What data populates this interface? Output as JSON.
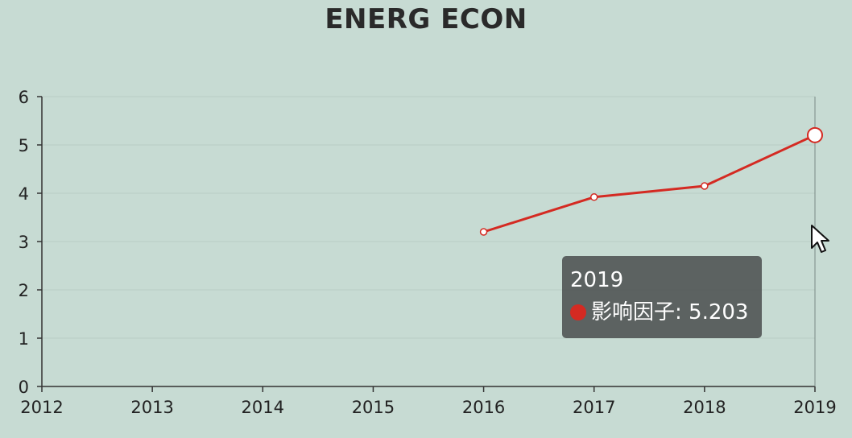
{
  "chart_data": {
    "type": "line",
    "title": "ENERG ECON",
    "xlabel": "",
    "ylabel": "",
    "x": [
      "2012",
      "2013",
      "2014",
      "2015",
      "2016",
      "2017",
      "2018",
      "2019"
    ],
    "ylim": [
      0,
      6
    ],
    "yticks": [
      "0",
      "1",
      "2",
      "3",
      "4",
      "5",
      "6"
    ],
    "series": [
      {
        "name": "影响因子",
        "values": [
          null,
          null,
          null,
          null,
          3.2,
          3.92,
          4.15,
          5.203
        ]
      }
    ],
    "grid": true,
    "colors": {
      "line": "#d42a22",
      "axis": "#333333",
      "grid": "#b9ccc4",
      "background": "#c7dbd3"
    }
  },
  "tooltip": {
    "title": "2019",
    "series_label": "影响因子",
    "value": "5.203",
    "text": "影响因子: 5.203"
  }
}
